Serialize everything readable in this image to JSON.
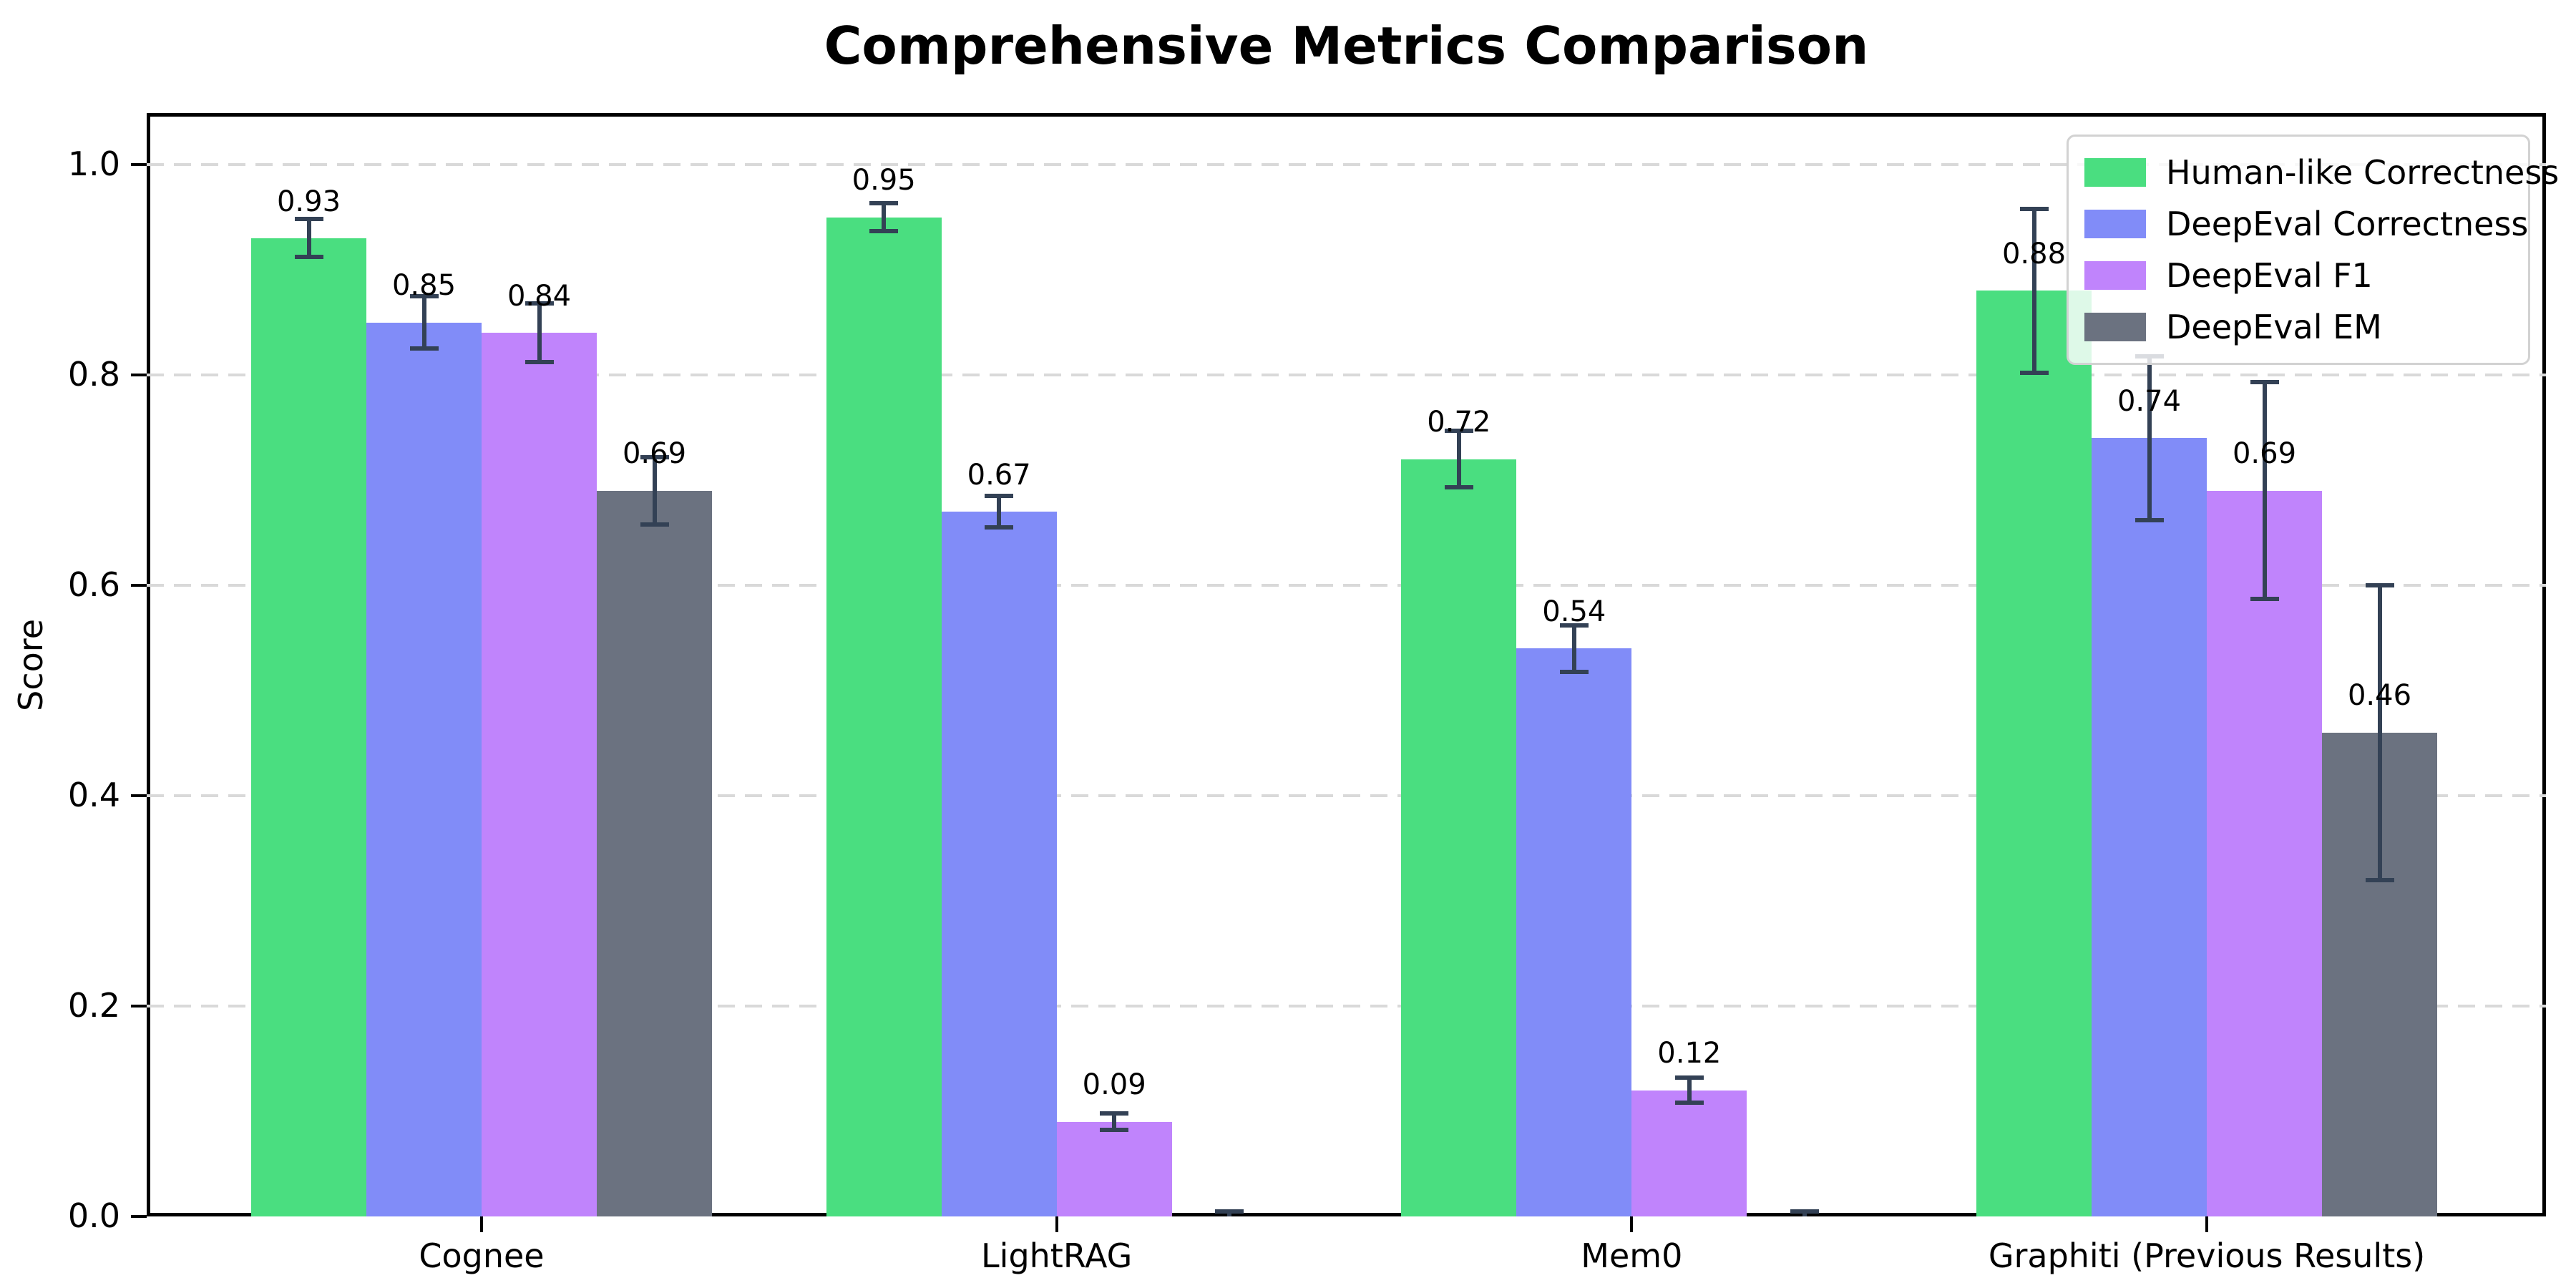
{
  "chart_data": {
    "type": "bar",
    "title": "Comprehensive Metrics Comparison",
    "xlabel": "",
    "ylabel": "Score",
    "categories": [
      "Cognee",
      "LightRAG",
      "Mem0",
      "Graphiti (Previous Results)"
    ],
    "series": [
      {
        "name": "Human-like Correctness",
        "color": "#4ade80",
        "values": [
          0.93,
          0.95,
          0.72,
          0.88
        ],
        "errors": [
          0.018,
          0.013,
          0.027,
          0.078
        ],
        "labels": [
          "0.93",
          "0.95",
          "0.72",
          "0.88"
        ]
      },
      {
        "name": "DeepEval Correctness",
        "color": "#818cf8",
        "values": [
          0.85,
          0.67,
          0.54,
          0.74
        ],
        "errors": [
          0.025,
          0.015,
          0.022,
          0.078
        ],
        "labels": [
          "0.85",
          "0.67",
          "0.54",
          "0.74"
        ]
      },
      {
        "name": "DeepEval F1",
        "color": "#c084fc",
        "values": [
          0.84,
          0.09,
          0.12,
          0.69
        ],
        "errors": [
          0.028,
          0.008,
          0.012,
          0.103
        ],
        "labels": [
          "0.84",
          "0.09",
          "0.12",
          "0.69"
        ]
      },
      {
        "name": "DeepEval EM",
        "color": "#6b7280",
        "values": [
          0.69,
          0.0,
          0.0,
          0.46
        ],
        "errors": [
          0.032,
          0.005,
          0.005,
          0.14
        ],
        "labels": [
          "0.69",
          null,
          null,
          "0.46"
        ]
      }
    ],
    "yticks": [
      "0.0",
      "0.2",
      "0.4",
      "0.6",
      "0.8",
      "1.0"
    ],
    "ytick_values": [
      0.0,
      0.2,
      0.4,
      0.6,
      0.8,
      1.0
    ],
    "ylim": [
      0.0,
      1.049
    ],
    "grid": "horizontal-dashed",
    "gridline_color": "#d9d9d9",
    "legend_position": "upper-right",
    "error_bar_color": "#334155",
    "bar_label_value_offset": 0.02
  }
}
